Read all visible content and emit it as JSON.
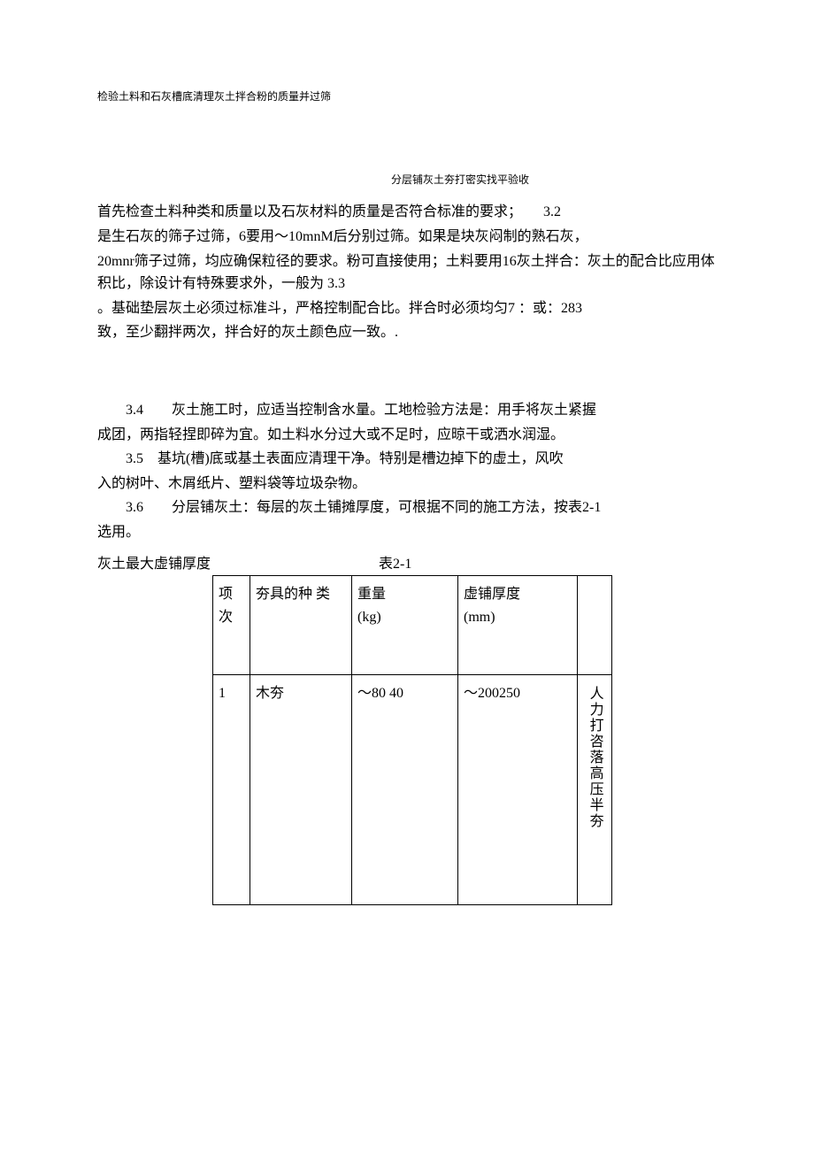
{
  "header_small": "检验土料和石灰槽底清理灰土拌合粉的质量并过筛",
  "center_small": "分层铺灰土夯打密实找平验收",
  "para1_line1": "首先检查土料种类和质量以及石灰材料的质量是否符合标准的要求；　　3.2",
  "para1_line2": "是生石灰的筛子过筛，6要用〜10mnM后分别过筛。如果是块灰闷制的熟石灰，",
  "para1_line3": "20mnr筛子过筛，均应确保粒径的要求。粉可直接使用；土料要用16灰土拌合：灰土的配合比应用体积比，除设计有特殊要求外，一般为 3.3",
  "para1_line4": "。基础垫层灰土必须过标准斗，严格控制配合比。拌合时必须均匀7 ：或：283",
  "para1_line5": "致，至少翻拌两次，拌合好的灰土颜色应一致。.",
  "para34_a": "3.4　　灰土施工时，应适当控制含水量。工地检验方法是：用手将灰土紧握",
  "para34_b": "成团，两指轻捏即碎为宜。如土料水分过大或不足时，应晾干或洒水润湿。",
  "para35_a": "3.5　基坑(槽)底或基土表面应清理干净。特别是槽边掉下的虚土，风吹",
  "para35_b": "入的树叶、木屑纸片、塑料袋等垃圾杂物。",
  "para36_a": "3.6　　分层铺灰土：每层的灰土铺摊厚度，可根据不同的施工方法，按表2-1",
  "para36_b": "选用。",
  "table_title_left": "灰土最大虚铺厚度",
  "table_title_right": "表2-1",
  "table": {
    "headers": {
      "col1": "项 次",
      "col2": "夯具的种 类",
      "col3_line1": "重量",
      "col3_line2": "(kg)",
      "col4_line1": "虚铺厚度",
      "col4_line2": "(mm)"
    },
    "row1": {
      "num": "1",
      "type": "木夯",
      "weight": "〜80 40",
      "thick": "〜200250",
      "note": "人力打咨落高压半夯"
    }
  },
  "colors": {
    "text": "#000000",
    "background": "#ffffff",
    "border": "#000000"
  }
}
